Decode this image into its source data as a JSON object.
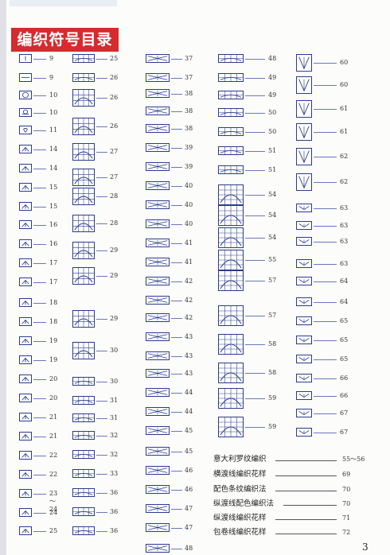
{
  "title": "编织符号目录",
  "page_number": "3",
  "colors": {
    "title_bg": "#d62b2e",
    "symbol_ink": "#2a3a8c",
    "leader": "#6a78b8"
  },
  "columns": [
    {
      "col": 1,
      "entries": [
        {
          "page": "9",
          "icon": "vertical-bar-symbol"
        },
        {
          "page": "9",
          "icon": "horizontal-bar-symbol"
        },
        {
          "page": "10",
          "icon": "circle-symbol"
        },
        {
          "page": "10",
          "icon": "circle-bar-symbol"
        },
        {
          "page": "11",
          "icon": "loop-symbol"
        },
        {
          "page": "14",
          "icon": "right-lean-symbol"
        },
        {
          "page": "14",
          "icon": "right-lean-dot-symbol"
        },
        {
          "page": "15",
          "icon": "left-lean-symbol"
        },
        {
          "page": "15",
          "icon": "left-lean-dot-symbol"
        },
        {
          "page": "16",
          "icon": "three-together-symbol"
        },
        {
          "page": "16",
          "icon": "three-together-dot-symbol"
        },
        {
          "page": "17",
          "icon": "arrow-up-symbol"
        },
        {
          "page": "17",
          "icon": "arrow-up-bar-symbol"
        },
        {
          "page": "18",
          "icon": "cross-lean-symbol"
        },
        {
          "page": "18",
          "icon": "four-together-symbol"
        },
        {
          "page": "19",
          "icon": "five-together-symbol"
        },
        {
          "page": "19",
          "icon": "five-together-dot-symbol"
        },
        {
          "page": "20",
          "icon": "fan-symbol"
        },
        {
          "page": "20",
          "icon": "fan-solid-symbol"
        },
        {
          "page": "21",
          "icon": "twist-right-symbol"
        },
        {
          "page": "21",
          "icon": "twist-left-symbol"
        },
        {
          "page": "22",
          "icon": "bar-t-symbol"
        },
        {
          "page": "22",
          "icon": "double-t-symbol"
        },
        {
          "page": "23～24",
          "icon": "diamond-symbol"
        },
        {
          "page": "24",
          "icon": "down-arrow-symbol"
        },
        {
          "page": "25",
          "icon": "down-arrow-dot-symbol"
        }
      ]
    },
    {
      "col": 2,
      "entries": [
        {
          "page": "25",
          "icon": "cable-cross-symbol"
        },
        {
          "page": "26",
          "icon": "bobble-symbol"
        },
        {
          "page": "26",
          "icon": "leaf-grid-symbol"
        },
        {
          "page": "26",
          "icon": "leaf-grid-tall-symbol"
        },
        {
          "page": "27",
          "icon": "cell-grid-symbol"
        },
        {
          "page": "27",
          "icon": "cell-grid-wide-symbol"
        },
        {
          "page": "28",
          "icon": "arch-grid-symbol"
        },
        {
          "page": "28",
          "icon": "round-grid-symbol"
        },
        {
          "page": "29",
          "icon": "round-grid-2-symbol"
        },
        {
          "page": "29",
          "icon": "dense-grid-symbol"
        },
        {
          "page": "29",
          "icon": "tall-column-symbol"
        },
        {
          "page": "30",
          "icon": "long-column-symbol"
        },
        {
          "page": "30",
          "icon": "bead-row-symbol"
        },
        {
          "page": "31",
          "icon": "circle-num-symbol"
        },
        {
          "page": "31",
          "icon": "circle-big-symbol"
        },
        {
          "page": "32",
          "icon": "ring-symbol"
        },
        {
          "page": "32",
          "icon": "ring-hatched-symbol"
        },
        {
          "page": "33",
          "icon": "ring-dark-symbol"
        },
        {
          "page": "36",
          "icon": "x-cable-symbol"
        },
        {
          "page": "36",
          "icon": "x-cable-2-symbol"
        },
        {
          "page": "36",
          "icon": "x-cable-3-symbol"
        }
      ]
    },
    {
      "col": 3,
      "entries": [
        {
          "page": "37",
          "icon": "cross-3x3-symbol"
        },
        {
          "page": "37",
          "icon": "cross-3x3-b-symbol"
        },
        {
          "page": "38",
          "icon": "cross-dot-symbol"
        },
        {
          "page": "38",
          "icon": "cross-dot-b-symbol"
        },
        {
          "page": "38",
          "icon": "cross-twist-symbol"
        },
        {
          "page": "39",
          "icon": "cross-twist-b-symbol"
        },
        {
          "page": "39",
          "icon": "cross-twist-c-symbol"
        },
        {
          "page": "40",
          "icon": "slash-lines-symbol"
        },
        {
          "page": "40",
          "icon": "slash-bar-symbol"
        },
        {
          "page": "40",
          "icon": "cross-wide-symbol"
        },
        {
          "page": "41",
          "icon": "cross-wide-b-symbol"
        },
        {
          "page": "41",
          "icon": "cross-wide-c-symbol"
        },
        {
          "page": "42",
          "icon": "cross-wide-d-symbol"
        },
        {
          "page": "42",
          "icon": "cross-wide-e-symbol"
        },
        {
          "page": "42",
          "icon": "cross-wide-f-symbol"
        },
        {
          "page": "43",
          "icon": "cross-wide-g-symbol"
        },
        {
          "page": "43",
          "icon": "cross-wide-h-symbol"
        },
        {
          "page": "43",
          "icon": "cross-wide-i-symbol"
        },
        {
          "page": "44",
          "icon": "cross-wide-j-symbol"
        },
        {
          "page": "44",
          "icon": "cross-wide-k-symbol"
        },
        {
          "page": "45",
          "icon": "cross-wide-l-symbol"
        },
        {
          "page": "45",
          "icon": "cross-wide-m-symbol"
        },
        {
          "page": "46",
          "icon": "cross-wide-n-symbol"
        },
        {
          "page": "46",
          "icon": "cross-wide-o-symbol"
        },
        {
          "page": "47",
          "icon": "cross-wide-p-symbol"
        },
        {
          "page": "47",
          "icon": "cross-wide-q-symbol"
        },
        {
          "page": "48",
          "icon": "cross-wide-r-symbol"
        }
      ]
    },
    {
      "col": 4,
      "entries": [
        {
          "page": "48",
          "icon": "band-cross-symbol"
        },
        {
          "page": "49",
          "icon": "band-cross-b-symbol"
        },
        {
          "page": "49",
          "icon": "band-cross-c-symbol"
        },
        {
          "page": "50",
          "icon": "band-cross-d-symbol"
        },
        {
          "page": "50",
          "icon": "band-cross-e-symbol"
        },
        {
          "page": "51",
          "icon": "band-hatch-symbol"
        },
        {
          "page": "51",
          "icon": "band-hatch-b-symbol"
        },
        {
          "page": "54",
          "icon": "arch-box-symbol"
        },
        {
          "page": "54",
          "icon": "arch-box-b-symbol"
        },
        {
          "page": "54",
          "icon": "arch-box-c-symbol"
        },
        {
          "page": "55",
          "icon": "arch-box-d-symbol"
        },
        {
          "page": "57",
          "icon": "key-symbol"
        },
        {
          "page": "57",
          "icon": "tall-arch-symbol"
        },
        {
          "page": "58",
          "icon": "tall-arch-b-symbol"
        },
        {
          "page": "58",
          "icon": "tall-feather-symbol"
        },
        {
          "page": "59",
          "icon": "tall-feather-b-symbol"
        },
        {
          "page": "59",
          "icon": "tall-feather-c-symbol"
        }
      ]
    },
    {
      "col": 5,
      "entries": [
        {
          "page": "60",
          "icon": "v-box-symbol"
        },
        {
          "page": "60",
          "icon": "v-box-b-symbol"
        },
        {
          "page": "61",
          "icon": "v-box-c-symbol"
        },
        {
          "page": "61",
          "icon": "v-box-d-symbol"
        },
        {
          "page": "62",
          "icon": "fan-grid-symbol"
        },
        {
          "page": "62",
          "icon": "fan-grid-b-symbol"
        },
        {
          "page": "63",
          "icon": "loop-row-symbol"
        },
        {
          "page": "63",
          "icon": "loop-row-b-symbol"
        },
        {
          "page": "63",
          "icon": "loop-row-c-symbol"
        },
        {
          "page": "63",
          "icon": "tick-row-symbol"
        },
        {
          "page": "64",
          "icon": "tick-row-b-symbol"
        },
        {
          "page": "64",
          "icon": "tick-row-c-symbol"
        },
        {
          "page": "65",
          "icon": "tick-row-d-symbol"
        },
        {
          "page": "65",
          "icon": "tick-row-e-symbol"
        },
        {
          "page": "65",
          "icon": "tick-row-f-symbol"
        },
        {
          "page": "66",
          "icon": "tick-row-g-symbol"
        },
        {
          "page": "66",
          "icon": "tick-row-h-symbol"
        },
        {
          "page": "67",
          "icon": "tick-row-i-symbol"
        },
        {
          "page": "67",
          "icon": "tick-row-j-symbol"
        }
      ]
    }
  ],
  "text_toc": [
    {
      "label": "意大利罗纹编织",
      "page": "55～56"
    },
    {
      "label": "横渡线编织花样",
      "page": "69"
    },
    {
      "label": "配色条纹编织法",
      "page": "70"
    },
    {
      "label": "纵渡线配色编织法",
      "page": "70"
    },
    {
      "label": "纵渡线编织花样",
      "page": "71"
    },
    {
      "label": "包卷线编织花样",
      "page": "72"
    }
  ]
}
